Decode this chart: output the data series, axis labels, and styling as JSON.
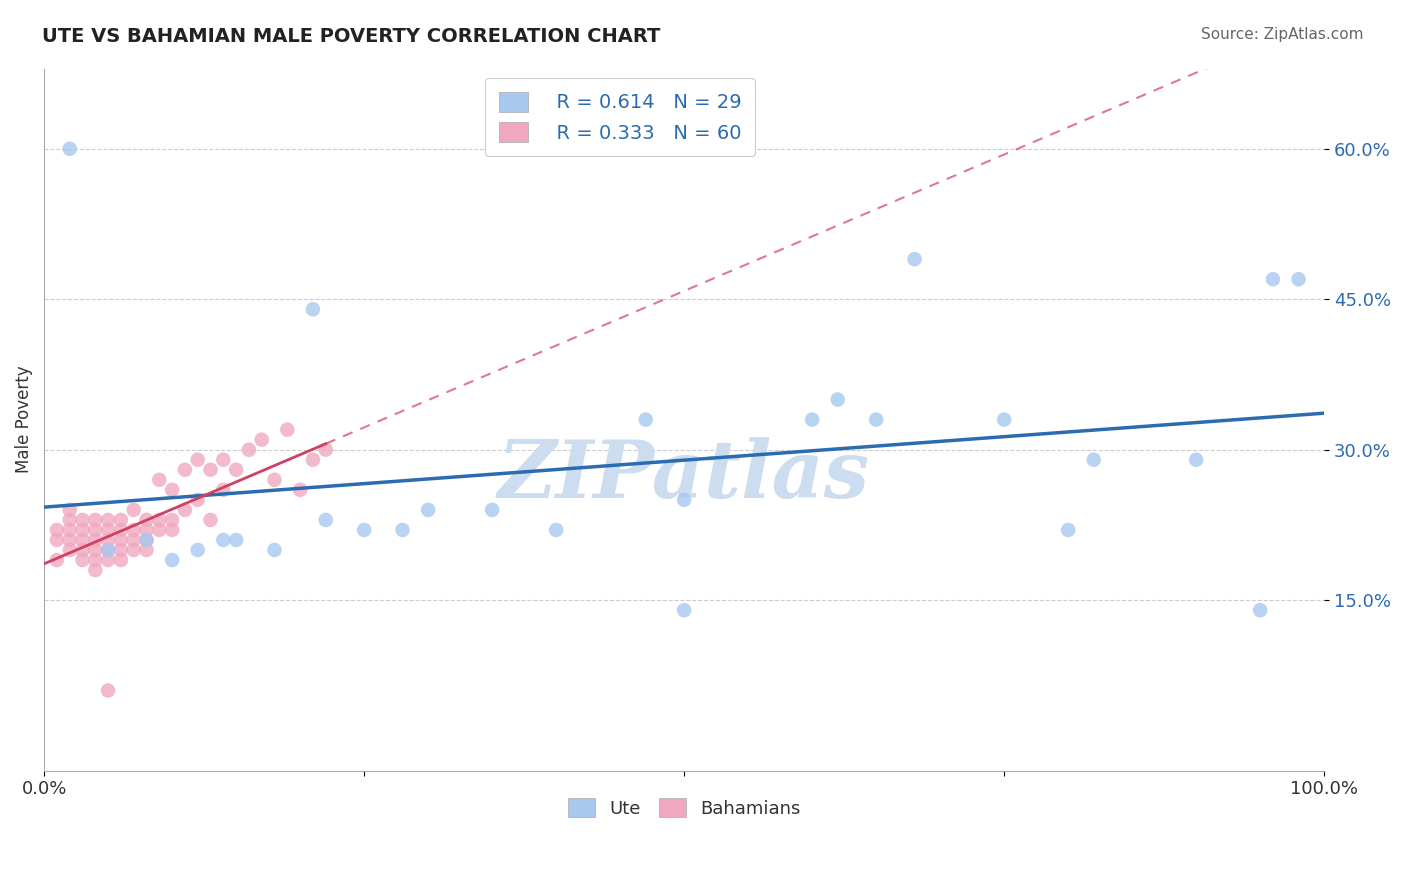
{
  "title": "UTE VS BAHAMIAN MALE POVERTY CORRELATION CHART",
  "source": "Source: ZipAtlas.com",
  "ylabel": "Male Poverty",
  "xlim": [
    0,
    1.0
  ],
  "ylim": [
    -0.02,
    0.68
  ],
  "xticks": [
    0,
    0.25,
    0.5,
    0.75,
    1.0
  ],
  "xtick_labels": [
    "0.0%",
    "",
    "",
    "",
    "100.0%"
  ],
  "yticks": [
    0.15,
    0.3,
    0.45,
    0.6
  ],
  "ytick_labels": [
    "15.0%",
    "30.0%",
    "45.0%",
    "60.0%"
  ],
  "legend_r_ute": "R = 0.614",
  "legend_n_ute": "N = 29",
  "legend_r_bah": "R = 0.333",
  "legend_n_bah": "N = 60",
  "ute_color": "#a8c8f0",
  "bah_color": "#f0a8c0",
  "ute_line_color": "#2b6cb0",
  "bah_line_color": "#d04060",
  "watermark": "ZIPatlas",
  "watermark_color": "#ccddf0",
  "ute_x": [
    0.02,
    0.21,
    0.28,
    0.35,
    0.47,
    0.5,
    0.62,
    0.68,
    0.75,
    0.82,
    0.96,
    0.98,
    0.05,
    0.08,
    0.12,
    0.14,
    0.18,
    0.22,
    0.25,
    0.3,
    0.4,
    0.5,
    0.6,
    0.65,
    0.8,
    0.9,
    0.95,
    0.1,
    0.15
  ],
  "ute_y": [
    0.6,
    0.44,
    0.22,
    0.24,
    0.33,
    0.14,
    0.35,
    0.49,
    0.33,
    0.29,
    0.47,
    0.47,
    0.2,
    0.21,
    0.2,
    0.21,
    0.2,
    0.23,
    0.22,
    0.24,
    0.22,
    0.25,
    0.33,
    0.33,
    0.22,
    0.29,
    0.14,
    0.19,
    0.21
  ],
  "bah_x": [
    0.01,
    0.01,
    0.01,
    0.02,
    0.02,
    0.02,
    0.02,
    0.02,
    0.03,
    0.03,
    0.03,
    0.03,
    0.03,
    0.04,
    0.04,
    0.04,
    0.04,
    0.04,
    0.04,
    0.05,
    0.05,
    0.05,
    0.05,
    0.05,
    0.06,
    0.06,
    0.06,
    0.06,
    0.06,
    0.07,
    0.07,
    0.07,
    0.07,
    0.08,
    0.08,
    0.08,
    0.08,
    0.09,
    0.09,
    0.09,
    0.1,
    0.1,
    0.1,
    0.11,
    0.11,
    0.12,
    0.12,
    0.13,
    0.13,
    0.14,
    0.14,
    0.15,
    0.16,
    0.17,
    0.18,
    0.19,
    0.2,
    0.21,
    0.22,
    0.05
  ],
  "bah_y": [
    0.19,
    0.21,
    0.22,
    0.2,
    0.21,
    0.22,
    0.23,
    0.24,
    0.19,
    0.2,
    0.21,
    0.22,
    0.23,
    0.18,
    0.19,
    0.2,
    0.21,
    0.22,
    0.23,
    0.19,
    0.2,
    0.21,
    0.22,
    0.23,
    0.19,
    0.2,
    0.21,
    0.22,
    0.23,
    0.2,
    0.21,
    0.22,
    0.24,
    0.2,
    0.21,
    0.22,
    0.23,
    0.22,
    0.23,
    0.27,
    0.22,
    0.23,
    0.26,
    0.24,
    0.28,
    0.25,
    0.29,
    0.23,
    0.28,
    0.26,
    0.29,
    0.28,
    0.3,
    0.31,
    0.27,
    0.32,
    0.26,
    0.29,
    0.3,
    0.06
  ],
  "bah_line_x_start": 0.0,
  "bah_line_x_end": 0.22,
  "ute_line_x_start": 0.0,
  "ute_line_x_end": 1.0
}
